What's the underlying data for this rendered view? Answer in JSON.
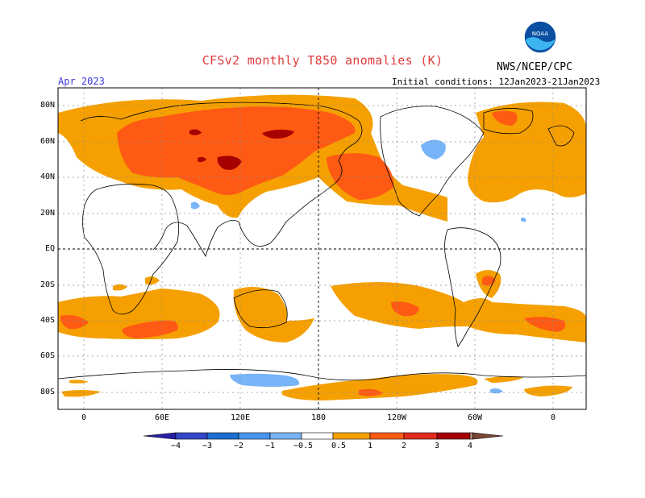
{
  "header": {
    "title": "CFSv2 monthly T850 anomalies (K)",
    "agency": "NWS/NCEP/CPC",
    "period": "Apr 2023",
    "initial_conditions": "Initial conditions: 12Jan2023-21Jan2023",
    "logo_text": "NOAA"
  },
  "axes": {
    "lat_labels": [
      "80N",
      "60N",
      "40N",
      "20N",
      "EQ",
      "20S",
      "40S",
      "60S",
      "80S"
    ],
    "lon_labels": [
      "0",
      "60E",
      "120E",
      "180",
      "120W",
      "60W",
      "0"
    ]
  },
  "colorbar": {
    "labels": [
      "−4",
      "−3",
      "−2",
      "−1",
      "−0.5",
      "0.5",
      "1",
      "2",
      "3",
      "4"
    ],
    "colors": [
      "#2a1ea8",
      "#3346c8",
      "#1e6ed2",
      "#4696f0",
      "#78b4f8",
      "#ffffff",
      "#f5a000",
      "#ff5a14",
      "#e02c1c",
      "#a60000",
      "#c89888",
      "#7a4634"
    ]
  }
}
